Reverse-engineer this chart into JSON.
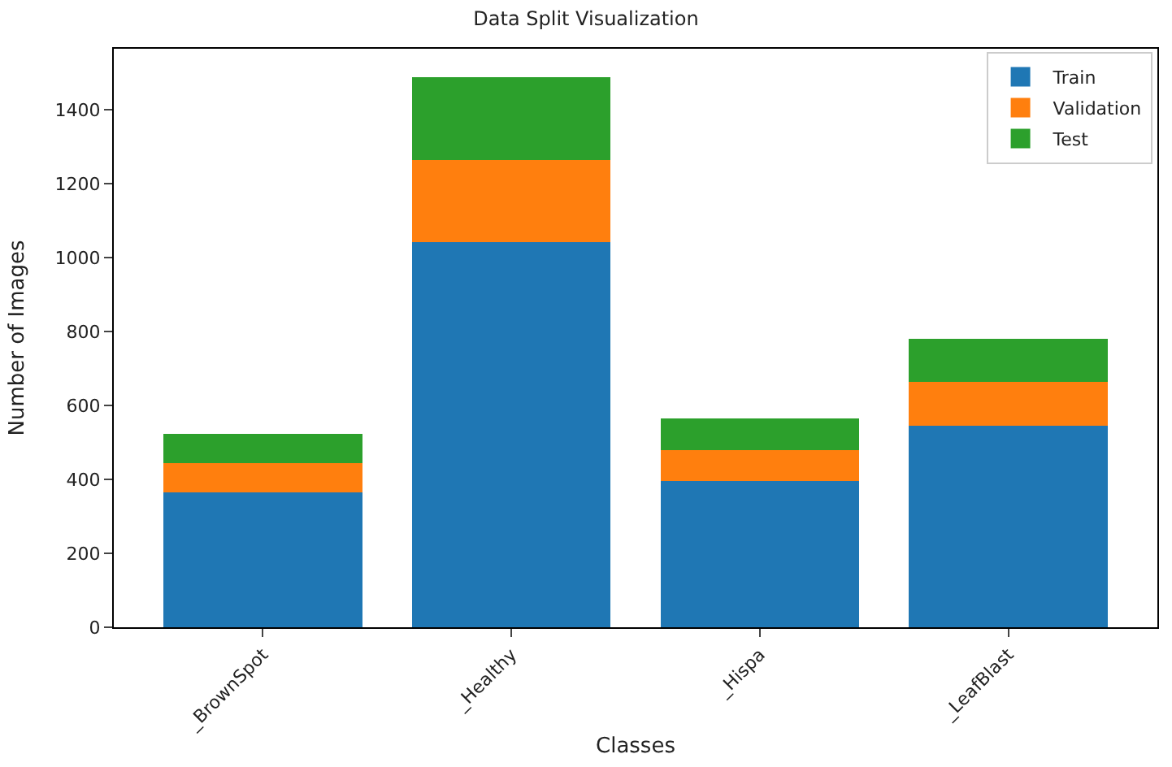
{
  "chart_data": {
    "type": "bar",
    "title": "Data Split Visualization",
    "xlabel": "Classes",
    "ylabel": "Number of Images",
    "categories": [
      "_BrownSpot",
      "_Healthy",
      "_Hispa",
      "_LeafBlast"
    ],
    "series": [
      {
        "name": "Train",
        "color": "#1f77b4",
        "values": [
          365,
          1042,
          396,
          545
        ]
      },
      {
        "name": "Validation",
        "color": "#ff7f0e",
        "values": [
          80,
          221,
          83,
          118
        ]
      },
      {
        "name": "Test",
        "color": "#2ca02c",
        "values": [
          78,
          224,
          87,
          118
        ]
      }
    ],
    "stacked": true,
    "ylim": [
      0,
      1565
    ],
    "yticks": [
      0,
      200,
      400,
      600,
      800,
      1000,
      1200,
      1400
    ],
    "grid": false,
    "legend": "top right"
  }
}
